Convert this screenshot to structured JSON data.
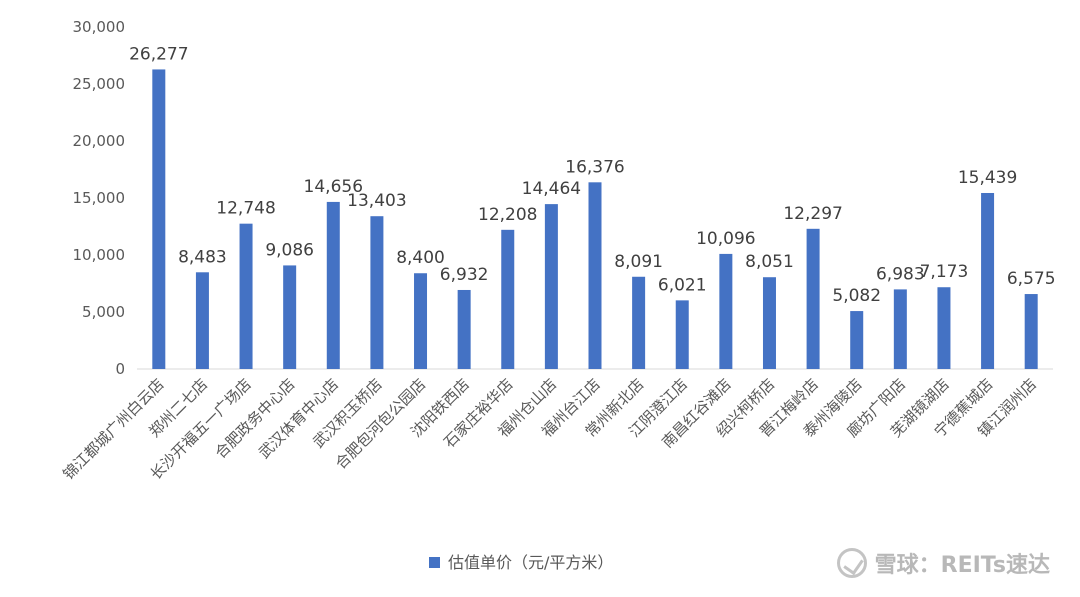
{
  "chart_data": {
    "type": "bar",
    "categories": [
      "锦江都城广州白云店",
      "郑州二七店",
      "长沙开福五一广场店",
      "合肥政务中心店",
      "武汉体育中心店",
      "武汉积玉桥店",
      "合肥包河包公园店",
      "沈阳铁西店",
      "石家庄裕华店",
      "福州仓山店",
      "福州台江店",
      "常州新北店",
      "江阴澄江店",
      "南昌红谷滩店",
      "绍兴柯桥店",
      "晋江梅岭店",
      "泰州海陵店",
      "廊坊广阳店",
      "芜湖镜湖店",
      "宁德蕉城店",
      "镇江润州店"
    ],
    "series": [
      {
        "name": "估值单价（元/平方米）",
        "values": [
          26277,
          8483,
          12748,
          9086,
          14656,
          13403,
          8400,
          6932,
          12208,
          14464,
          16376,
          8091,
          6021,
          10096,
          8051,
          12297,
          5082,
          6983,
          7173,
          15439,
          6575
        ],
        "value_labels": [
          "26,277",
          "8,483",
          "12,748",
          "9,086",
          "14,656",
          "13,403",
          "8,400",
          "6,932",
          "12,208",
          "14,464",
          "16,376",
          "8,091",
          "6,021",
          "10,096",
          "8,051",
          "12,297",
          "5,082",
          "6,983",
          "7,173",
          "15,439",
          "6,575"
        ]
      }
    ],
    "ylim": [
      0,
      30000
    ],
    "yticks": [
      0,
      5000,
      10000,
      15000,
      20000,
      25000,
      30000
    ],
    "ytick_labels": [
      "0",
      "5,000",
      "10,000",
      "15,000",
      "20,000",
      "25,000",
      "30,000"
    ],
    "grid": false,
    "legend_position": "bottom",
    "bar_color": "#4472C4"
  },
  "watermark": {
    "text": "雪球：REITs速达"
  }
}
